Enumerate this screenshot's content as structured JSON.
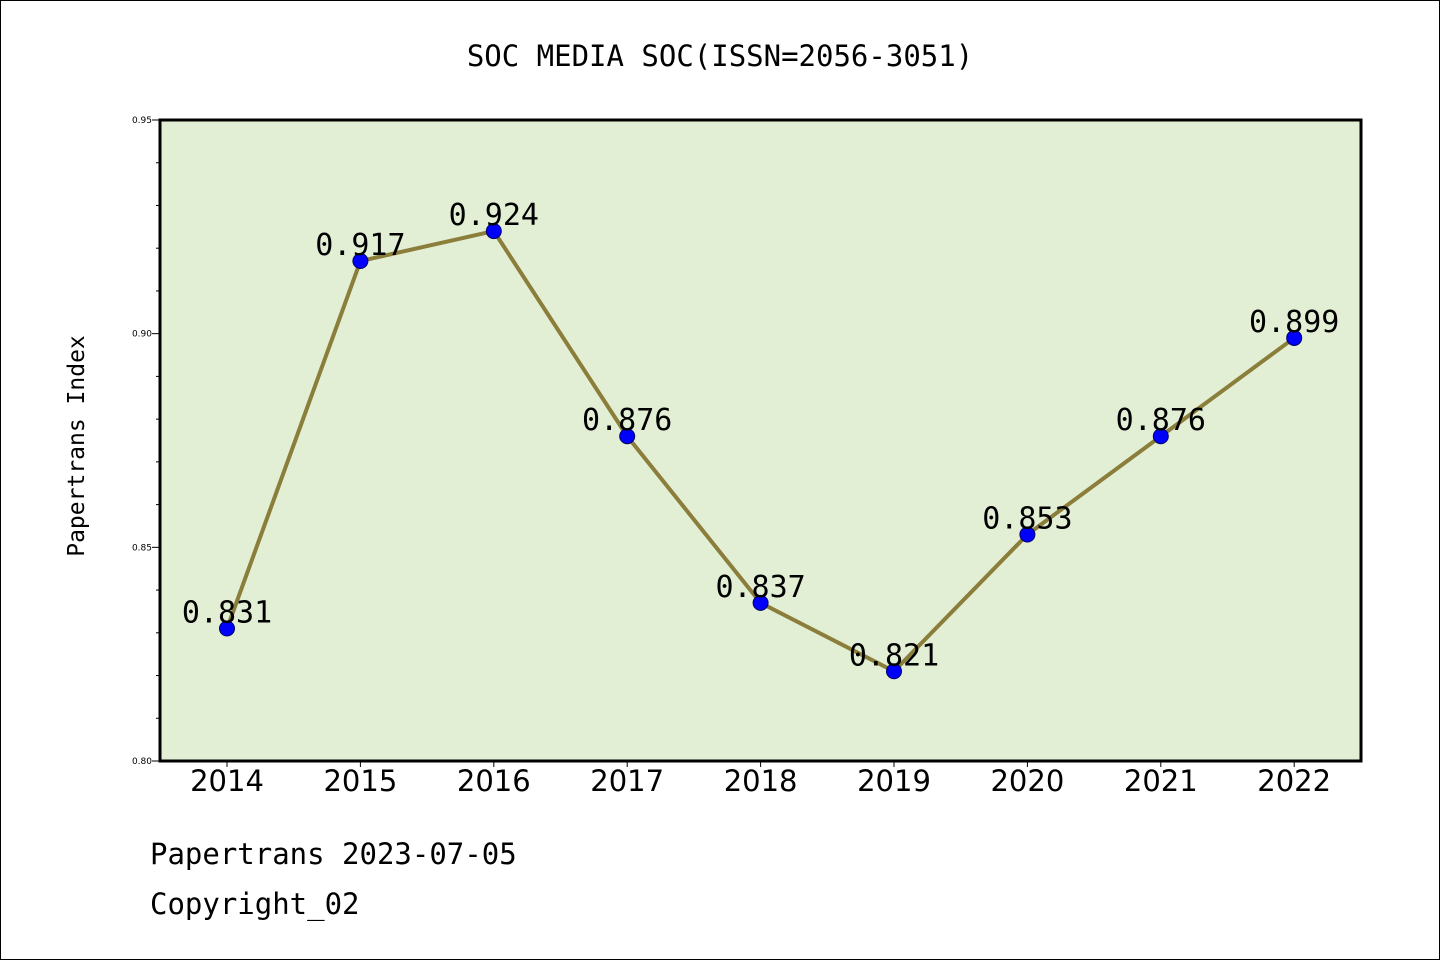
{
  "chart_data": {
    "type": "line",
    "title": "SOC MEDIA SOC(ISSN=2056-3051)",
    "xlabel": "",
    "ylabel": "Papertrans Index",
    "categories": [
      "2014",
      "2015",
      "2016",
      "2017",
      "2018",
      "2019",
      "2020",
      "2021",
      "2022"
    ],
    "series": [
      {
        "values": [
          0.831,
          0.917,
          0.924,
          0.876,
          0.837,
          0.821,
          0.853,
          0.876,
          0.899
        ],
        "data_labels": [
          "0.831",
          "0.917",
          "0.924",
          "0.876",
          "0.837",
          "0.821",
          "0.853",
          "0.876",
          "0.899"
        ]
      }
    ],
    "ylim": [
      0.8,
      0.95
    ],
    "yticks": [
      "0.80",
      "0.85",
      "0.90",
      "0.95"
    ],
    "grid": false,
    "colors": {
      "line": "#8b7d3a",
      "marker": "#0000ff",
      "plot_background": "#e2efd5"
    }
  },
  "footer": {
    "line1": "Papertrans 2023-07-05",
    "line2": "Copyright_02"
  }
}
